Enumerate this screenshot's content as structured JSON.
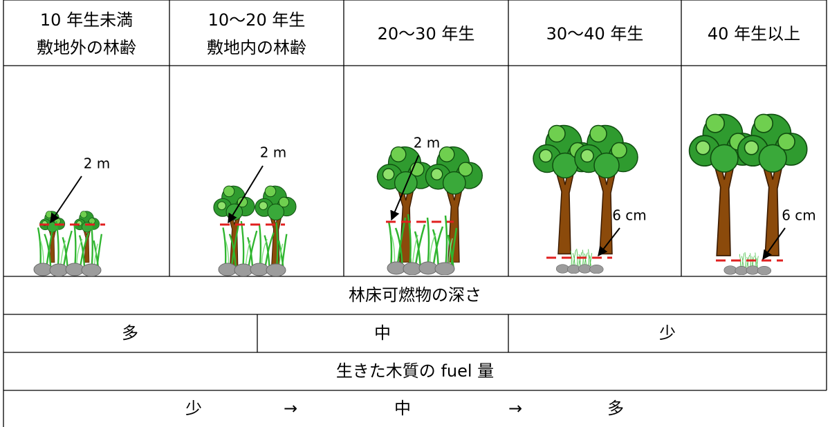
{
  "header": {
    "columns": [
      {
        "lines": [
          "10 年生未満",
          "敷地外の林齢"
        ]
      },
      {
        "lines": [
          "10〜20 年生",
          "敷地内の林齢"
        ]
      },
      {
        "lines": [
          "20〜30 年生"
        ]
      },
      {
        "lines": [
          "30〜40 年生"
        ]
      },
      {
        "lines": [
          "40 年生以上"
        ]
      }
    ]
  },
  "annotations": [
    "2 m",
    "2 m",
    "2 m",
    "6 cm",
    "6 cm"
  ],
  "rows": {
    "floor_fuel_title": "林床可燃物の深さ",
    "floor_fuel_levels": [
      "多",
      "中",
      "少"
    ],
    "live_fuel_title": "生きた木質の fuel 量",
    "live_fuel_scale": [
      "少",
      "→",
      "中",
      "→",
      "多"
    ]
  }
}
